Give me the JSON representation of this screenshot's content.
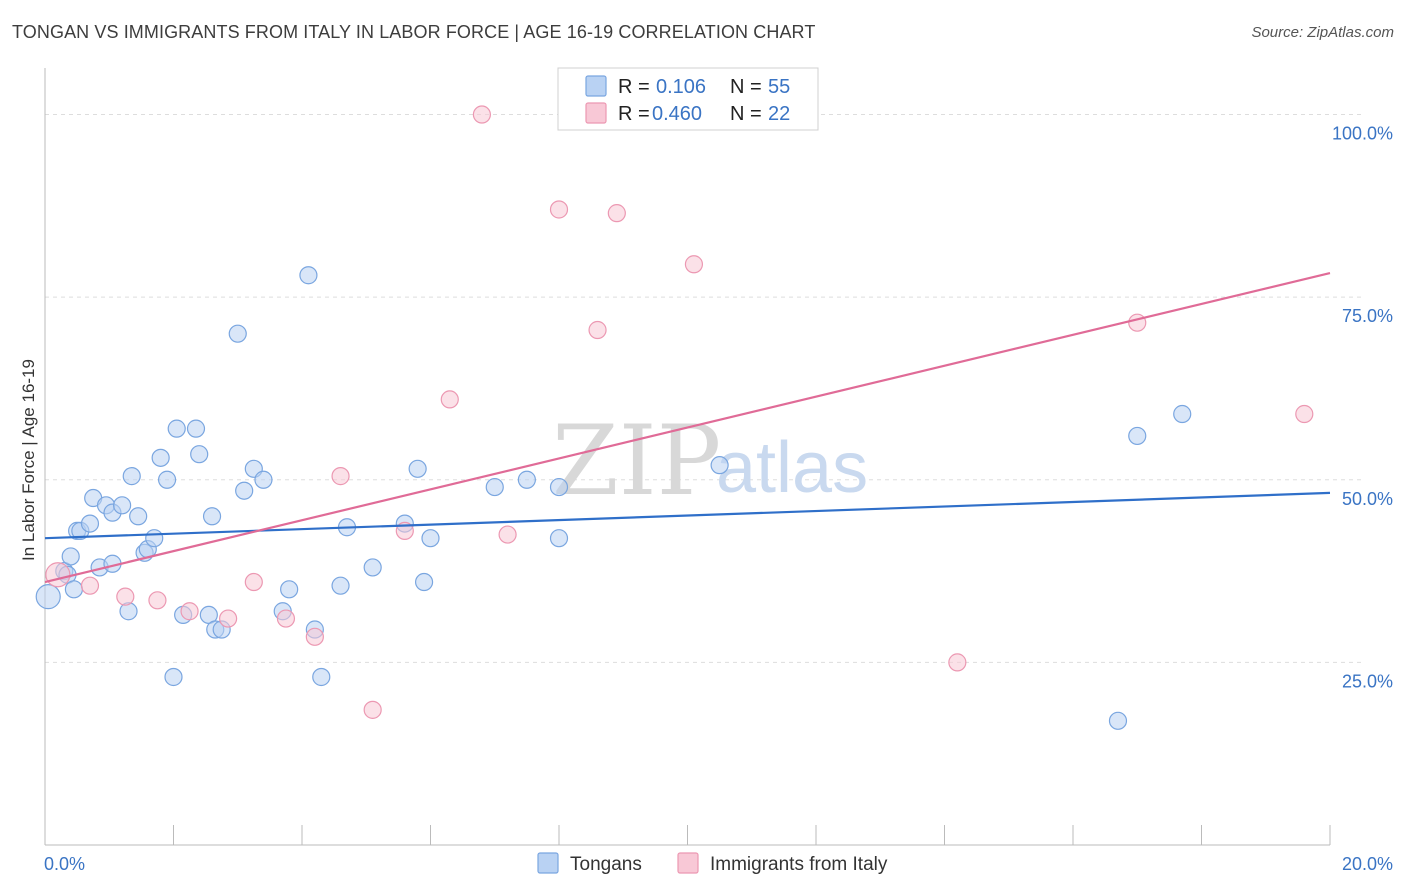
{
  "title": "TONGAN VS IMMIGRANTS FROM ITALY IN LABOR FORCE | AGE 16-19 CORRELATION CHART",
  "source": "Source: ZipAtlas.com",
  "watermark": {
    "zip": "ZIP",
    "atlas": "atlas"
  },
  "colors": {
    "tongans_fill": "#b9d2f3",
    "tongans_stroke": "#7aa6e0",
    "tongans_line": "#2f6fc9",
    "italy_fill": "#f8c8d6",
    "italy_stroke": "#ec98b2",
    "italy_line": "#e06b97",
    "grid": "#dddddd",
    "tick_label": "#3a74c4"
  },
  "legend": {
    "rows": [
      {
        "r_label": "R =",
        "r_value": "0.106",
        "n_label": "N =",
        "n_value": "55"
      },
      {
        "r_label": "R =",
        "r_value": "0.460",
        "n_label": "N =",
        "n_value": "22"
      }
    ]
  },
  "bottom_legend": [
    "Tongans",
    "Immigrants from Italy"
  ],
  "chart_data": {
    "type": "scatter",
    "title": "TONGAN VS IMMIGRANTS FROM ITALY IN LABOR FORCE | AGE 16-19 CORRELATION CHART",
    "xlabel": "",
    "ylabel": "In Labor Force | Age 16-19",
    "xlim": [
      0,
      20
    ],
    "ylim": [
      0,
      105
    ],
    "x_tick_labels": [
      "0.0%",
      "20.0%"
    ],
    "y_ticks": [
      25,
      50,
      75,
      100
    ],
    "y_tick_labels": [
      "25.0%",
      "50.0%",
      "75.0%",
      "100.0%"
    ],
    "grid": "horizontal-dashed",
    "legend_position": "top-center",
    "series": [
      {
        "name": "Tongans",
        "points": [
          [
            0.05,
            34.0
          ],
          [
            0.3,
            37.5
          ],
          [
            0.35,
            37.0
          ],
          [
            0.4,
            39.5
          ],
          [
            0.5,
            43.0
          ],
          [
            0.55,
            43.0
          ],
          [
            0.7,
            44.0
          ],
          [
            0.75,
            47.5
          ],
          [
            0.85,
            38.0
          ],
          [
            0.95,
            46.5
          ],
          [
            1.05,
            38.5
          ],
          [
            1.05,
            45.5
          ],
          [
            1.2,
            46.5
          ],
          [
            1.3,
            32.0
          ],
          [
            1.35,
            50.5
          ],
          [
            1.45,
            45.0
          ],
          [
            1.55,
            40.0
          ],
          [
            1.6,
            40.5
          ],
          [
            1.7,
            42.0
          ],
          [
            1.8,
            53.0
          ],
          [
            1.9,
            50.0
          ],
          [
            2.0,
            23.0
          ],
          [
            2.05,
            57.0
          ],
          [
            2.15,
            31.5
          ],
          [
            2.35,
            57.0
          ],
          [
            2.4,
            53.5
          ],
          [
            2.55,
            31.5
          ],
          [
            2.6,
            45.0
          ],
          [
            2.65,
            29.5
          ],
          [
            2.75,
            29.5
          ],
          [
            3.0,
            70.0
          ],
          [
            3.1,
            48.5
          ],
          [
            3.25,
            51.5
          ],
          [
            3.4,
            50.0
          ],
          [
            3.7,
            32.0
          ],
          [
            3.8,
            35.0
          ],
          [
            4.1,
            78.0
          ],
          [
            4.2,
            29.5
          ],
          [
            4.3,
            23.0
          ],
          [
            4.6,
            35.5
          ],
          [
            4.7,
            43.5
          ],
          [
            5.1,
            38.0
          ],
          [
            5.6,
            44.0
          ],
          [
            5.8,
            51.5
          ],
          [
            5.9,
            36.0
          ],
          [
            6.0,
            42.0
          ],
          [
            7.0,
            49.0
          ],
          [
            7.5,
            50.0
          ],
          [
            8.0,
            42.0
          ],
          [
            8.0,
            49.0
          ],
          [
            10.5,
            52.0
          ],
          [
            16.7,
            17.0
          ],
          [
            17.0,
            56.0
          ],
          [
            17.7,
            59.0
          ],
          [
            0.45,
            35.0
          ]
        ]
      },
      {
        "name": "Immigrants from Italy",
        "points": [
          [
            0.2,
            37.0
          ],
          [
            0.7,
            35.5
          ],
          [
            1.25,
            34.0
          ],
          [
            1.75,
            33.5
          ],
          [
            2.25,
            32.0
          ],
          [
            2.85,
            31.0
          ],
          [
            3.25,
            36.0
          ],
          [
            3.75,
            31.0
          ],
          [
            4.2,
            28.5
          ],
          [
            4.6,
            50.5
          ],
          [
            5.1,
            18.5
          ],
          [
            5.6,
            43.0
          ],
          [
            6.3,
            61.0
          ],
          [
            6.8,
            100.0
          ],
          [
            7.2,
            42.5
          ],
          [
            8.0,
            87.0
          ],
          [
            8.6,
            70.5
          ],
          [
            8.9,
            86.5
          ],
          [
            10.1,
            79.5
          ],
          [
            14.2,
            25.0
          ],
          [
            17.0,
            71.5
          ],
          [
            19.6,
            59.0
          ]
        ]
      }
    ],
    "trend_lines": [
      {
        "name": "Tongans",
        "x": [
          0,
          20
        ],
        "y": [
          42.0,
          48.2
        ]
      },
      {
        "name": "Immigrants from Italy",
        "x": [
          0,
          20
        ],
        "y": [
          36.0,
          78.3
        ]
      }
    ]
  }
}
